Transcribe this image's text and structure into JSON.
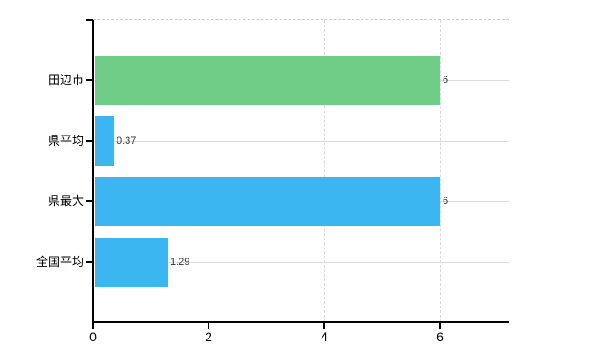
{
  "chart_data": {
    "type": "bar",
    "orientation": "horizontal",
    "title": "",
    "xlabel": "",
    "ylabel": "",
    "categories": [
      "田辺市",
      "県平均",
      "県最大",
      "全国平均"
    ],
    "values": [
      6,
      0.37,
      6,
      1.29
    ],
    "value_labels": [
      "6",
      "0.37",
      "6",
      "1.29"
    ],
    "bar_colors": [
      "#6fcd87",
      "#3cb6f0",
      "#3cb6f0",
      "#3cb6f0"
    ],
    "x_ticks": [
      0,
      2,
      4,
      6
    ],
    "x_tick_labels": [
      "0",
      "2",
      "4",
      "6"
    ],
    "xlim": [
      0,
      7.2
    ],
    "grid": {
      "horizontal": "solid light gray at each category center",
      "vertical": "dashed light gray at x ticks",
      "top_border": "dashed light gray"
    },
    "colors": {
      "axis": "#000000",
      "grid_horizontal": "#dcdcdc",
      "grid_vertical": "#d8d8d8",
      "top_border": "#cccccc",
      "category_text": "#000000",
      "tick_text": "#000000",
      "value_text": "#333333",
      "background": "#ffffff"
    },
    "legend": null
  }
}
